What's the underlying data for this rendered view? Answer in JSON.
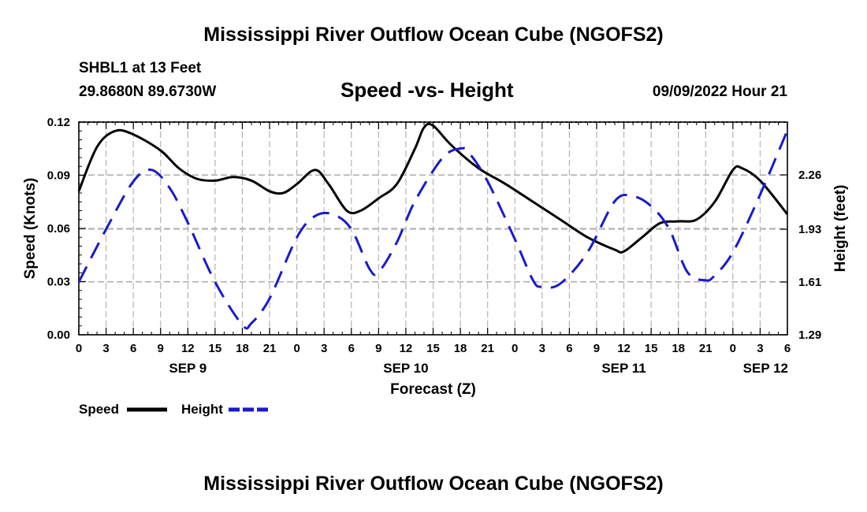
{
  "header": {
    "title": "Mississippi River Outflow Ocean Cube (NGOFS2)",
    "station": "SHBL1 at 13 Feet",
    "coords": "29.8680N  89.6730W",
    "subtitle": "Speed -vs- Height",
    "datetime": "09/09/2022 Hour 21"
  },
  "footer": {
    "title": "Mississippi River Outflow Ocean Cube (NGOFS2)"
  },
  "legend": {
    "speed_label": "Speed",
    "height_label": "Height"
  },
  "colors": {
    "speed": "#000000",
    "height": "#1a1acc",
    "grid": "#b4b4b4"
  },
  "chart_data": {
    "type": "line",
    "xlabel": "Forecast (Z)",
    "ylabel": "Speed (Knots)",
    "y2label": "Height (feet)",
    "xlim": [
      0,
      78
    ],
    "ylim": [
      0,
      0.12
    ],
    "y2lim": [
      1.29,
      2.58
    ],
    "x_tick_labels": [
      "0",
      "3",
      "6",
      "9",
      "12",
      "15",
      "18",
      "21",
      "0",
      "3",
      "6",
      "9",
      "12",
      "15",
      "18",
      "21",
      "0",
      "3",
      "6",
      "9",
      "12",
      "15",
      "18",
      "21",
      "0",
      "3",
      "6"
    ],
    "date_labels": [
      {
        "label": "SEP 9",
        "x": 12
      },
      {
        "label": "SEP 10",
        "x": 36
      },
      {
        "label": "SEP 11",
        "x": 60
      },
      {
        "label": "SEP 12",
        "x": 78
      }
    ],
    "y_ticks": [
      0.0,
      0.03,
      0.06,
      0.09,
      0.12
    ],
    "y_tick_labels": [
      "0.00",
      "0.03",
      "0.06",
      "0.09",
      "0.12"
    ],
    "y2_ticks": [
      1.29,
      1.61,
      1.93,
      2.26
    ],
    "y2_tick_labels": [
      "1.29",
      "1.61",
      "1.93",
      "2.26"
    ],
    "series": [
      {
        "name": "Speed",
        "axis": "left",
        "style": "solid",
        "x": [
          0,
          2,
          4,
          6,
          9,
          11,
          13,
          15,
          17,
          19,
          21,
          22.5,
          24,
          26,
          27.5,
          29.5,
          31,
          33,
          35,
          37,
          38,
          39,
          41,
          44,
          47,
          50,
          53,
          56,
          59,
          60,
          62,
          64,
          66,
          68,
          70,
          72,
          73,
          75,
          78
        ],
        "values": [
          0.081,
          0.106,
          0.115,
          0.113,
          0.104,
          0.094,
          0.088,
          0.087,
          0.089,
          0.087,
          0.081,
          0.08,
          0.085,
          0.093,
          0.085,
          0.07,
          0.07,
          0.077,
          0.085,
          0.105,
          0.117,
          0.118,
          0.107,
          0.094,
          0.085,
          0.075,
          0.065,
          0.055,
          0.048,
          0.047,
          0.055,
          0.063,
          0.064,
          0.065,
          0.075,
          0.093,
          0.094,
          0.087,
          0.068
        ]
      },
      {
        "name": "Height",
        "axis": "right",
        "style": "dashed",
        "x": [
          0,
          3,
          6,
          8,
          10,
          12,
          15,
          18,
          19,
          21,
          24,
          26,
          28,
          30,
          32,
          33,
          35,
          37,
          40,
          42,
          43,
          45,
          48,
          50,
          51,
          53,
          56,
          59,
          61,
          63,
          65,
          67,
          69,
          70,
          72,
          75,
          78
        ],
        "values": [
          1.61,
          1.93,
          2.22,
          2.29,
          2.18,
          1.97,
          1.61,
          1.35,
          1.36,
          1.51,
          1.88,
          2.01,
          2.02,
          1.93,
          1.69,
          1.67,
          1.85,
          2.1,
          2.36,
          2.42,
          2.39,
          2.22,
          1.87,
          1.62,
          1.58,
          1.6,
          1.79,
          2.1,
          2.13,
          2.07,
          1.93,
          1.67,
          1.62,
          1.65,
          1.79,
          2.14,
          2.53
        ]
      }
    ]
  }
}
